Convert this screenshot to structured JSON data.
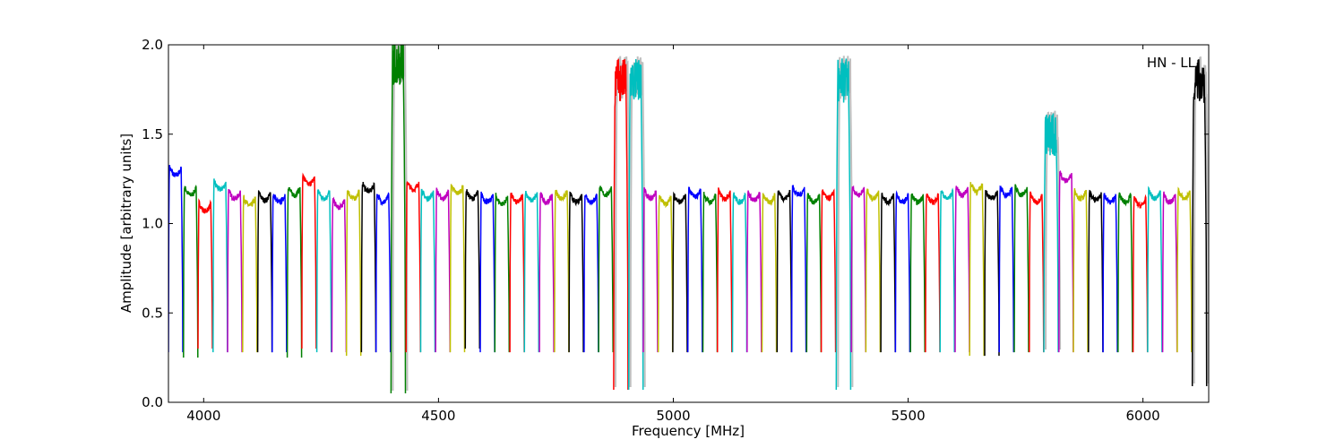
{
  "chart_data": {
    "type": "line",
    "title": "",
    "xlabel": "Frequency [MHz]",
    "ylabel": "Amplitude [arbitrary units]",
    "xlim": [
      3925,
      6140
    ],
    "ylim": [
      0.0,
      2.0
    ],
    "xticks": [
      4000,
      4500,
      5000,
      5500,
      6000
    ],
    "yticks": [
      0.0,
      0.5,
      1.0,
      1.5,
      2.0
    ],
    "xtick_labels": [
      "4000",
      "4500",
      "5000",
      "5500",
      "6000"
    ],
    "ytick_labels": [
      "0.0",
      "0.5",
      "1.0",
      "1.5",
      "2.0"
    ],
    "grid": false,
    "annotation": "HN - LL",
    "annotation_position": "top-right",
    "channel_width_mhz": 31.6,
    "colors": [
      "#0000ff",
      "#008000",
      "#ff0000",
      "#00bfbf",
      "#bf00bf",
      "#bfbf00",
      "#000000"
    ],
    "reference_color": "#bfbfbf",
    "series": [
      {
        "start": 3925,
        "level": 1.33,
        "low": 0.28
      },
      {
        "start": 3957,
        "level": 1.22,
        "low": 0.25
      },
      {
        "start": 3988,
        "level": 1.13,
        "low": 0.3
      },
      {
        "start": 4020,
        "level": 1.25,
        "low": 0.28
      },
      {
        "start": 4051,
        "level": 1.2,
        "low": 0.28
      },
      {
        "start": 4083,
        "level": 1.16,
        "low": 0.28
      },
      {
        "start": 4115,
        "level": 1.19,
        "low": 0.28
      },
      {
        "start": 4146,
        "level": 1.18,
        "low": 0.28
      },
      {
        "start": 4178,
        "level": 1.22,
        "low": 0.25
      },
      {
        "start": 4209,
        "level": 1.28,
        "low": 0.3
      },
      {
        "start": 4241,
        "level": 1.2,
        "low": 0.28
      },
      {
        "start": 4273,
        "level": 1.15,
        "low": 0.28
      },
      {
        "start": 4304,
        "level": 1.2,
        "low": 0.26
      },
      {
        "start": 4336,
        "level": 1.24,
        "low": 0.28
      },
      {
        "start": 4367,
        "level": 1.18,
        "low": 0.28
      },
      {
        "start": 4399,
        "level": 1.9,
        "low": 0.05,
        "spike": true
      },
      {
        "start": 4431,
        "level": 1.25,
        "low": 0.28
      },
      {
        "start": 4462,
        "level": 1.2,
        "low": 0.28
      },
      {
        "start": 4494,
        "level": 1.2,
        "low": 0.28
      },
      {
        "start": 4525,
        "level": 1.23,
        "low": 0.28
      },
      {
        "start": 4557,
        "level": 1.2,
        "low": 0.3
      },
      {
        "start": 4589,
        "level": 1.18,
        "low": 0.28
      },
      {
        "start": 4620,
        "level": 1.17,
        "low": 0.28
      },
      {
        "start": 4652,
        "level": 1.18,
        "low": 0.28
      },
      {
        "start": 4683,
        "level": 1.19,
        "low": 0.28
      },
      {
        "start": 4715,
        "level": 1.18,
        "low": 0.28
      },
      {
        "start": 4747,
        "level": 1.2,
        "low": 0.28
      },
      {
        "start": 4778,
        "level": 1.18,
        "low": 0.28
      },
      {
        "start": 4810,
        "level": 1.18,
        "low": 0.28
      },
      {
        "start": 4841,
        "level": 1.22,
        "low": 0.28
      },
      {
        "start": 4873,
        "level": 1.8,
        "low": 0.07,
        "spike": true
      },
      {
        "start": 4905,
        "level": 1.8,
        "low": 0.07,
        "spike": true
      },
      {
        "start": 4936,
        "level": 1.2,
        "low": 0.28
      },
      {
        "start": 4968,
        "level": 1.17,
        "low": 0.28
      },
      {
        "start": 4999,
        "level": 1.18,
        "low": 0.28
      },
      {
        "start": 5031,
        "level": 1.21,
        "low": 0.28
      },
      {
        "start": 5063,
        "level": 1.18,
        "low": 0.28
      },
      {
        "start": 5094,
        "level": 1.2,
        "low": 0.28
      },
      {
        "start": 5126,
        "level": 1.18,
        "low": 0.28
      },
      {
        "start": 5157,
        "level": 1.19,
        "low": 0.28
      },
      {
        "start": 5189,
        "level": 1.18,
        "low": 0.28
      },
      {
        "start": 5221,
        "level": 1.2,
        "low": 0.28
      },
      {
        "start": 5252,
        "level": 1.22,
        "low": 0.28
      },
      {
        "start": 5284,
        "level": 1.18,
        "low": 0.28
      },
      {
        "start": 5315,
        "level": 1.2,
        "low": 0.28
      },
      {
        "start": 5347,
        "level": 1.8,
        "low": 0.07,
        "spike": true
      },
      {
        "start": 5379,
        "level": 1.22,
        "low": 0.28
      },
      {
        "start": 5410,
        "level": 1.2,
        "low": 0.28
      },
      {
        "start": 5442,
        "level": 1.18,
        "low": 0.28
      },
      {
        "start": 5473,
        "level": 1.18,
        "low": 0.28
      },
      {
        "start": 5505,
        "level": 1.18,
        "low": 0.28
      },
      {
        "start": 5537,
        "level": 1.18,
        "low": 0.28
      },
      {
        "start": 5568,
        "level": 1.2,
        "low": 0.28
      },
      {
        "start": 5600,
        "level": 1.22,
        "low": 0.28
      },
      {
        "start": 5631,
        "level": 1.24,
        "low": 0.26
      },
      {
        "start": 5663,
        "level": 1.2,
        "low": 0.26
      },
      {
        "start": 5694,
        "level": 1.22,
        "low": 0.28
      },
      {
        "start": 5726,
        "level": 1.22,
        "low": 0.28
      },
      {
        "start": 5758,
        "level": 1.18,
        "low": 0.28
      },
      {
        "start": 5789,
        "level": 1.5,
        "low": 0.28,
        "spike": true
      },
      {
        "start": 5821,
        "level": 1.3,
        "low": 0.28
      },
      {
        "start": 5852,
        "level": 1.2,
        "low": 0.28
      },
      {
        "start": 5884,
        "level": 1.19,
        "low": 0.28
      },
      {
        "start": 5915,
        "level": 1.18,
        "low": 0.28
      },
      {
        "start": 5947,
        "level": 1.18,
        "low": 0.28
      },
      {
        "start": 5979,
        "level": 1.16,
        "low": 0.28
      },
      {
        "start": 6010,
        "level": 1.2,
        "low": 0.28
      },
      {
        "start": 6042,
        "level": 1.18,
        "low": 0.28
      },
      {
        "start": 6073,
        "level": 1.2,
        "low": 0.28
      },
      {
        "start": 6105,
        "level": 1.8,
        "low": 0.09,
        "spike": true
      }
    ]
  }
}
